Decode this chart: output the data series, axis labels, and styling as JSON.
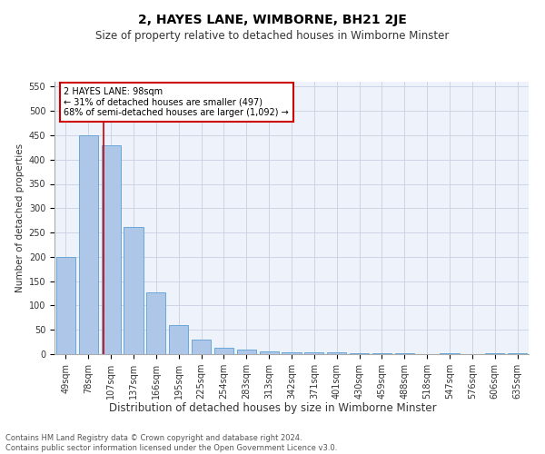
{
  "title": "2, HAYES LANE, WIMBORNE, BH21 2JE",
  "subtitle": "Size of property relative to detached houses in Wimborne Minster",
  "xlabel": "Distribution of detached houses by size in Wimborne Minster",
  "ylabel": "Number of detached properties",
  "categories": [
    "49sqm",
    "78sqm",
    "107sqm",
    "137sqm",
    "166sqm",
    "195sqm",
    "225sqm",
    "254sqm",
    "283sqm",
    "313sqm",
    "342sqm",
    "371sqm",
    "401sqm",
    "430sqm",
    "459sqm",
    "488sqm",
    "518sqm",
    "547sqm",
    "576sqm",
    "606sqm",
    "635sqm"
  ],
  "values": [
    199,
    450,
    430,
    262,
    127,
    60,
    30,
    14,
    9,
    5,
    3,
    3,
    3,
    1,
    1,
    1,
    0,
    1,
    0,
    1,
    1
  ],
  "bar_color": "#aec6e8",
  "bar_edge_color": "#5a9fd4",
  "vline_x_index": 1.67,
  "vline_color": "#cc0000",
  "ylim": [
    0,
    560
  ],
  "yticks": [
    0,
    50,
    100,
    150,
    200,
    250,
    300,
    350,
    400,
    450,
    500,
    550
  ],
  "annotation_text": "2 HAYES LANE: 98sqm\n← 31% of detached houses are smaller (497)\n68% of semi-detached houses are larger (1,092) →",
  "annotation_box_color": "#ffffff",
  "annotation_box_edge": "#cc0000",
  "footer": "Contains HM Land Registry data © Crown copyright and database right 2024.\nContains public sector information licensed under the Open Government Licence v3.0.",
  "background_color": "#eef2fb",
  "grid_color": "#c8d0e0",
  "title_fontsize": 10,
  "subtitle_fontsize": 8.5,
  "xlabel_fontsize": 8.5,
  "ylabel_fontsize": 7.5,
  "tick_fontsize": 7,
  "annotation_fontsize": 7,
  "footer_fontsize": 6
}
